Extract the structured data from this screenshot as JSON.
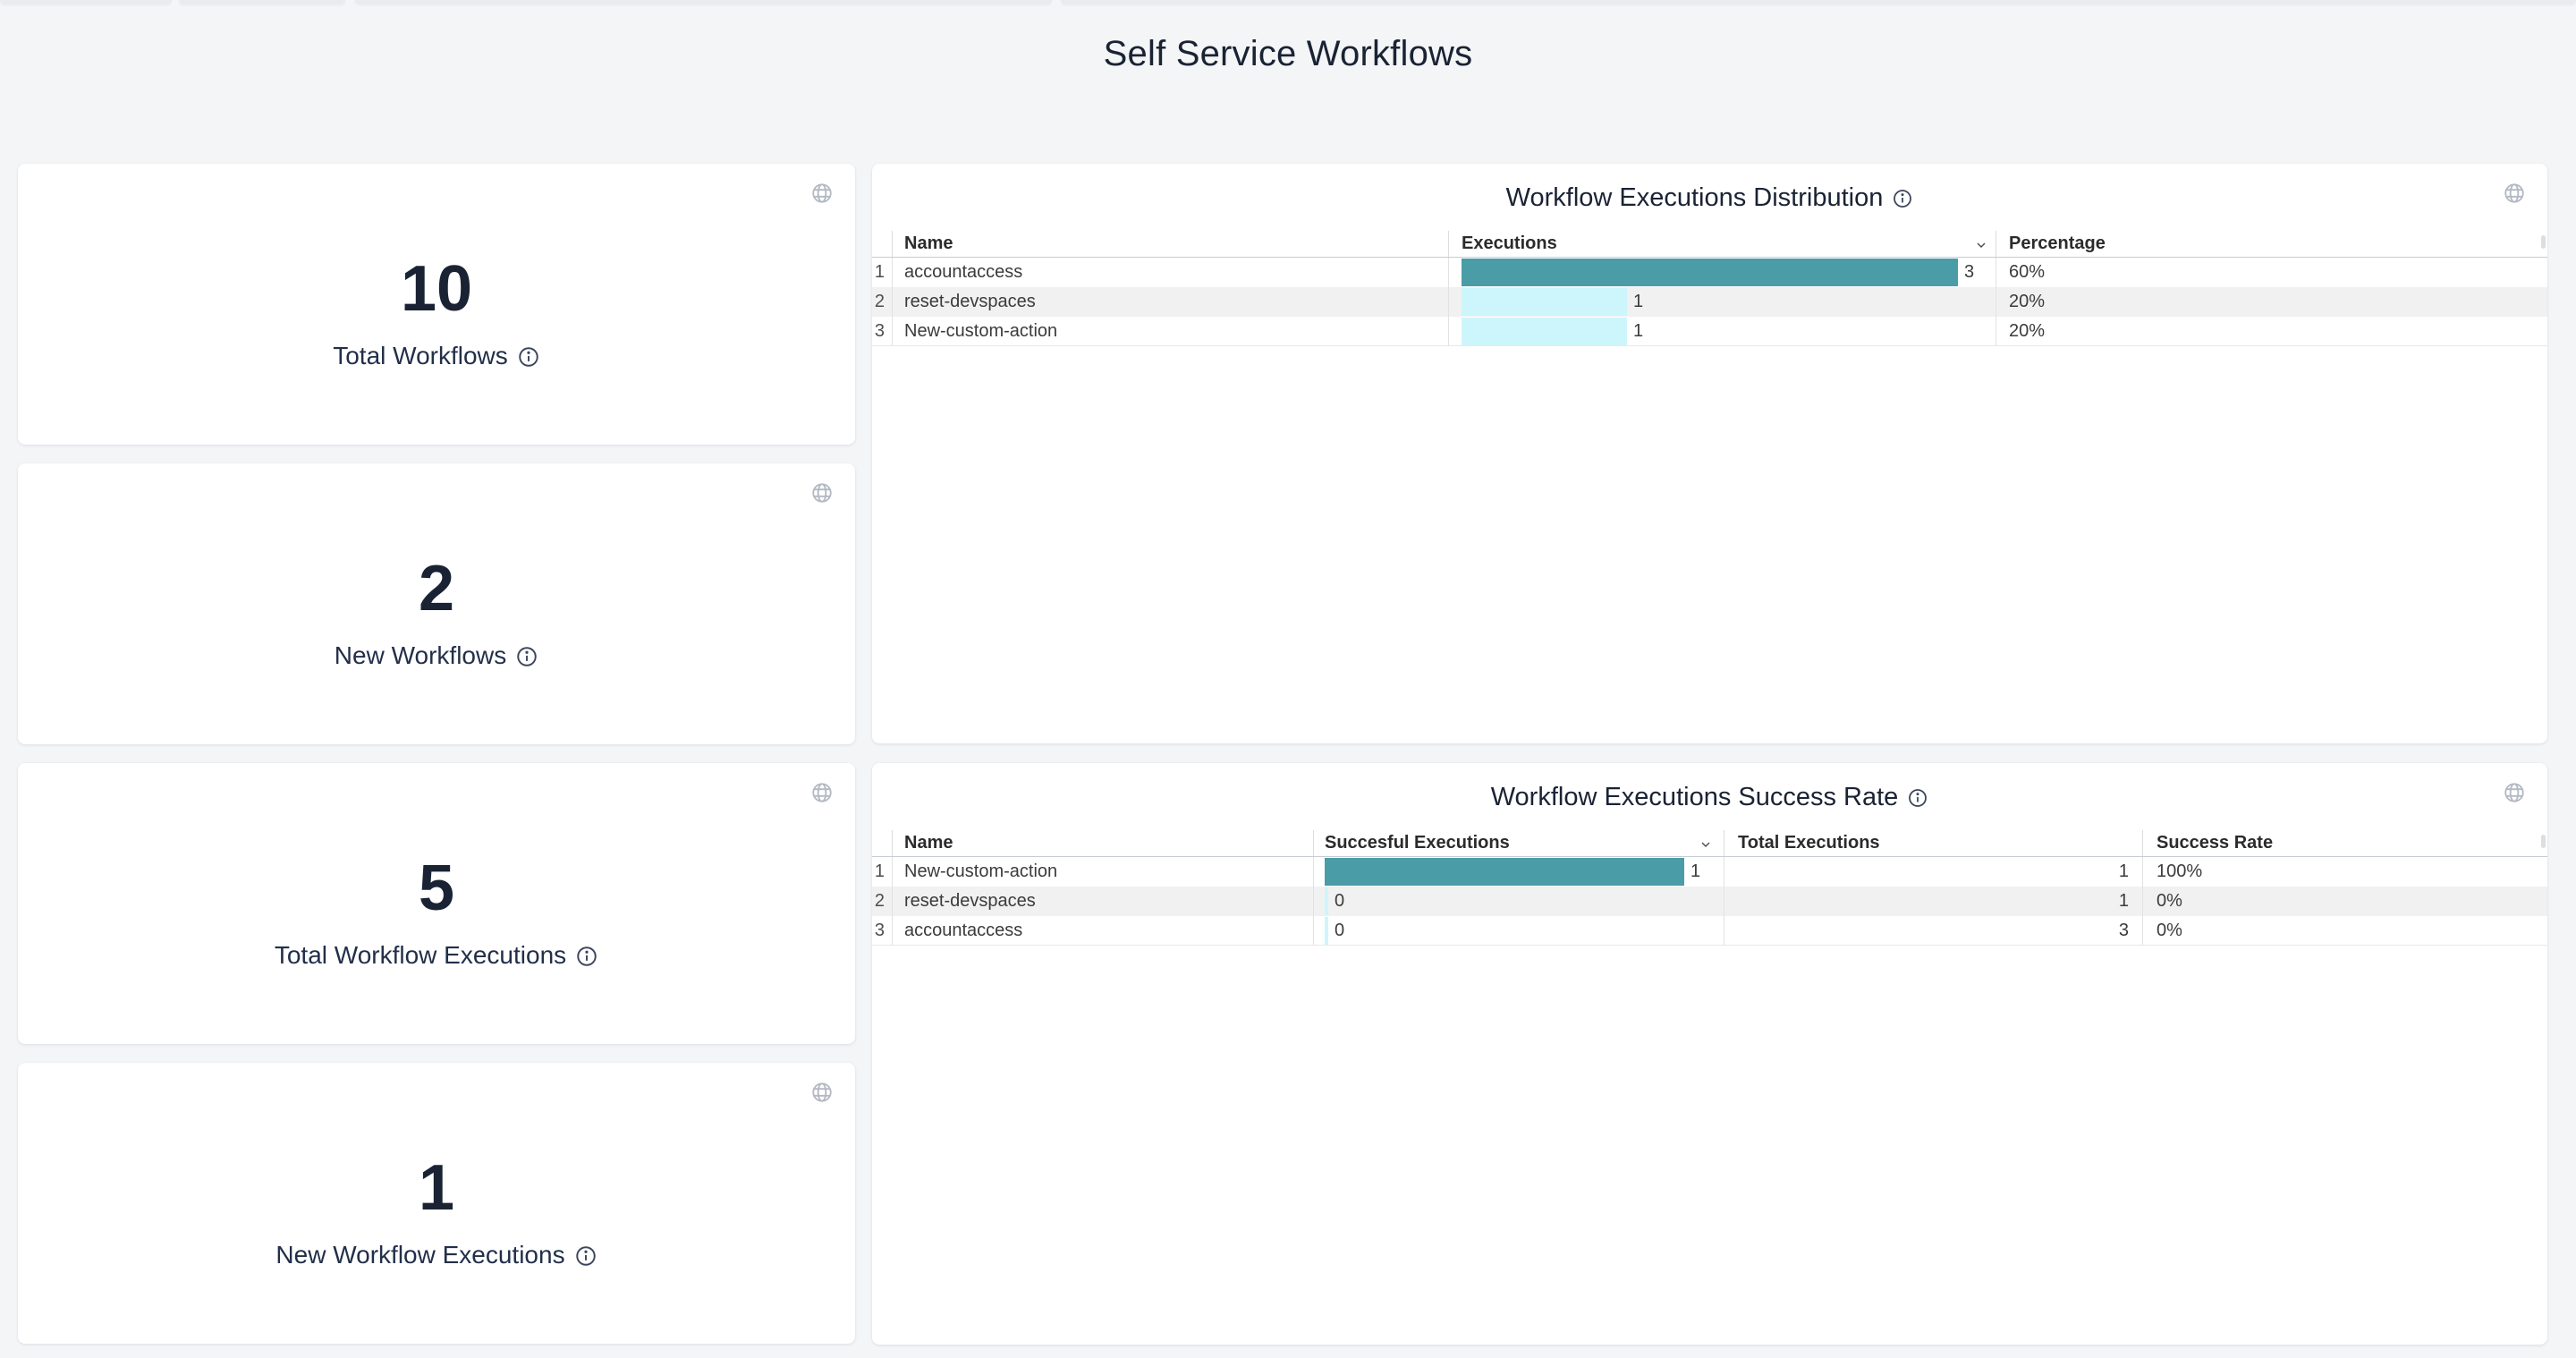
{
  "page": {
    "title": "Self Service Workflows"
  },
  "colors": {
    "page_bg": "#f4f5f7",
    "card_bg": "#ffffff",
    "navy": "#1a2334",
    "bar_primary": "#4a9ca6",
    "bar_secondary": "#cdf6fc",
    "row_alt_bg": "#f1f1f2",
    "divider": "#e2e2e2",
    "header_line": "#c7ccd4",
    "icon_gray": "#b3b9c3",
    "text_dark": "#3b3b3b"
  },
  "icons": {
    "card_action": "globe-icon",
    "info": "info-icon",
    "sort": "chevron-down-icon"
  },
  "stats": [
    {
      "value": "10",
      "label": "Total Workflows"
    },
    {
      "value": "2",
      "label": "New Workflows"
    },
    {
      "value": "5",
      "label": "Total Workflow Executions"
    },
    {
      "value": "1",
      "label": "New Workflow Executions"
    }
  ],
  "chart_data": [
    {
      "type": "bar",
      "title": "Workflow Executions Distribution",
      "columns": [
        "Name",
        "Executions",
        "Percentage"
      ],
      "max": 3,
      "rows": [
        {
          "i": "1",
          "name": "accountaccess",
          "executions": 3,
          "percentage": "60%"
        },
        {
          "i": "2",
          "name": "reset-devspaces",
          "executions": 1,
          "percentage": "20%"
        },
        {
          "i": "3",
          "name": "New-custom-action",
          "executions": 1,
          "percentage": "20%"
        }
      ]
    },
    {
      "type": "bar",
      "title": "Workflow Executions Success Rate",
      "columns": [
        "Name",
        "Succesful Executions",
        "Total Executions",
        "Success Rate"
      ],
      "max": 1,
      "rows": [
        {
          "i": "1",
          "name": "New-custom-action",
          "successful": 1,
          "total": "1",
          "success_rate": "100%"
        },
        {
          "i": "2",
          "name": "reset-devspaces",
          "successful": 0,
          "total": "1",
          "success_rate": "0%"
        },
        {
          "i": "3",
          "name": "accountaccess",
          "successful": 0,
          "total": "3",
          "success_rate": "0%"
        }
      ]
    }
  ]
}
